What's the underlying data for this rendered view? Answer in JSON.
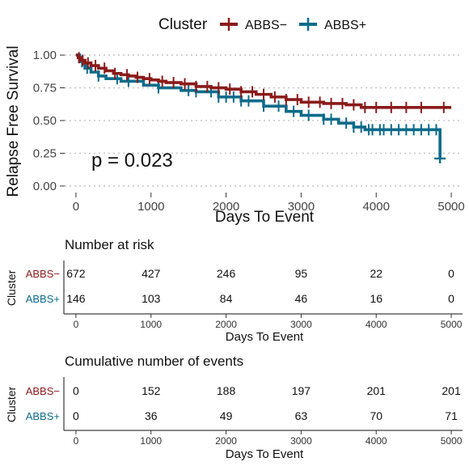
{
  "chart_data": {
    "type": "kaplan-meier",
    "ylabel": "Relapse Free Survival",
    "xlabel": "Days To Event",
    "xlim": [
      -150,
      5150
    ],
    "ylim": [
      -0.05,
      1.05
    ],
    "x_ticks": [
      0,
      1000,
      2000,
      3000,
      4000,
      5000
    ],
    "y_ticks": [
      0.0,
      0.25,
      0.5,
      0.75,
      1.0
    ],
    "y_tick_labels": [
      "0.00",
      "0.25",
      "0.50",
      "0.75",
      "1.00"
    ],
    "grid": "horizontal dotted",
    "legend": {
      "title": "Cluster",
      "position": "top",
      "entries": [
        "ABBS−",
        "ABBS+"
      ]
    },
    "annotation": "p = 0.023",
    "colors": {
      "ABBS−": "#8b1a1a",
      "ABBS+": "#0c6b8a"
    },
    "series": [
      {
        "name": "ABBS−",
        "points": [
          [
            0,
            1.0
          ],
          [
            30,
            0.98
          ],
          [
            70,
            0.96
          ],
          [
            120,
            0.94
          ],
          [
            200,
            0.92
          ],
          [
            300,
            0.9
          ],
          [
            400,
            0.88
          ],
          [
            500,
            0.86
          ],
          [
            600,
            0.85
          ],
          [
            700,
            0.84
          ],
          [
            800,
            0.83
          ],
          [
            900,
            0.82
          ],
          [
            1000,
            0.81
          ],
          [
            1100,
            0.8
          ],
          [
            1200,
            0.79
          ],
          [
            1400,
            0.78
          ],
          [
            1600,
            0.76
          ],
          [
            1800,
            0.75
          ],
          [
            2000,
            0.74
          ],
          [
            2200,
            0.72
          ],
          [
            2400,
            0.7
          ],
          [
            2600,
            0.68
          ],
          [
            2800,
            0.66
          ],
          [
            3000,
            0.64
          ],
          [
            3300,
            0.63
          ],
          [
            3600,
            0.62
          ],
          [
            3800,
            0.6
          ],
          [
            4100,
            0.6
          ],
          [
            5000,
            0.6
          ]
        ],
        "censor_x": [
          40,
          90,
          160,
          260,
          380,
          520,
          680,
          820,
          980,
          1150,
          1300,
          1450,
          1600,
          1750,
          1900,
          2050,
          2200,
          2350,
          2500,
          2650,
          2800,
          2950,
          3100,
          3250,
          3400,
          3550,
          3700,
          3850,
          4000,
          4200,
          4400,
          4600,
          4900
        ]
      },
      {
        "name": "ABBS+",
        "points": [
          [
            0,
            1.0
          ],
          [
            50,
            0.95
          ],
          [
            120,
            0.9
          ],
          [
            200,
            0.87
          ],
          [
            300,
            0.84
          ],
          [
            400,
            0.82
          ],
          [
            600,
            0.8
          ],
          [
            900,
            0.77
          ],
          [
            1100,
            0.75
          ],
          [
            1400,
            0.73
          ],
          [
            1600,
            0.72
          ],
          [
            1900,
            0.68
          ],
          [
            2200,
            0.65
          ],
          [
            2500,
            0.61
          ],
          [
            2800,
            0.57
          ],
          [
            3000,
            0.54
          ],
          [
            3300,
            0.51
          ],
          [
            3500,
            0.48
          ],
          [
            3700,
            0.45
          ],
          [
            3850,
            0.43
          ],
          [
            4850,
            0.43
          ],
          [
            4850,
            0.21
          ]
        ],
        "censor_x": [
          80,
          150,
          300,
          550,
          700,
          1100,
          1500,
          1600,
          1800,
          1900,
          2000,
          2100,
          2200,
          2300,
          2500,
          2700,
          2900,
          3100,
          3300,
          3400,
          3600,
          3700,
          3800,
          3900,
          3950,
          4050,
          4100,
          4200,
          4300,
          4400,
          4500,
          4600,
          4700,
          4800
        ]
      }
    ]
  },
  "risk_table": {
    "title": "Number at risk",
    "ylabel": "Cluster",
    "xlabel": "Days To Event",
    "x_ticks": [
      "0",
      "1000",
      "2000",
      "3000",
      "4000",
      "5000"
    ],
    "rows": [
      {
        "name": "ABBS−",
        "values": [
          "672",
          "427",
          "246",
          "95",
          "22",
          "0"
        ]
      },
      {
        "name": "ABBS+",
        "values": [
          "146",
          "103",
          "84",
          "46",
          "16",
          "0"
        ]
      }
    ]
  },
  "events_table": {
    "title": "Cumulative number of events",
    "ylabel": "Cluster",
    "xlabel": "Days To Event",
    "x_ticks": [
      "0",
      "1000",
      "2000",
      "3000",
      "4000",
      "5000"
    ],
    "rows": [
      {
        "name": "ABBS−",
        "values": [
          "0",
          "152",
          "188",
          "197",
          "201",
          "201"
        ]
      },
      {
        "name": "ABBS+",
        "values": [
          "0",
          "36",
          "49",
          "63",
          "70",
          "71"
        ]
      }
    ]
  }
}
